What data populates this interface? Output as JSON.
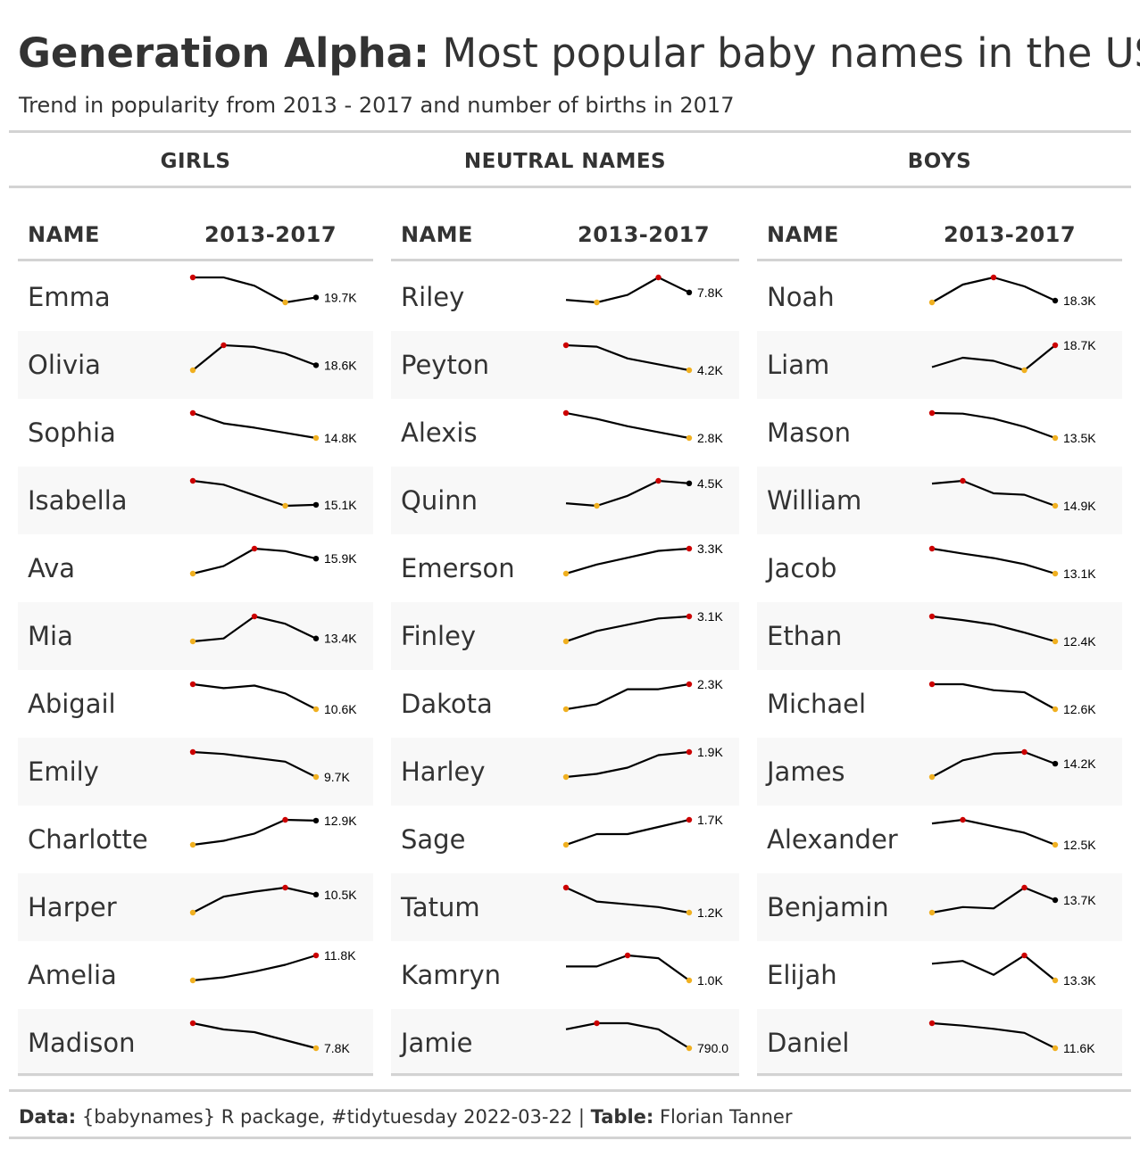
{
  "header": {
    "title_bold": "Generation Alpha:",
    "title_rest": "Most popular baby names in the US",
    "subtitle": "Trend in popularity from 2013 - 2017 and number of births in 2017"
  },
  "colors": {
    "line": "#000000",
    "max_point": "#cc0000",
    "min_point": "#f0b020",
    "row_alt": "#f8f8f8",
    "rule": "#d3d3d3"
  },
  "columns": {
    "name": "NAME",
    "trend": "2013-2017"
  },
  "chart_data": {
    "type": "table",
    "x": [
      2013,
      2014,
      2015,
      2016,
      2017
    ],
    "groups": [
      {
        "label": "GIRLS",
        "rows": [
          {
            "name": "Emma",
            "values": [
              20900,
              20900,
              20400,
              19400,
              19700
            ],
            "label": "19.7K"
          },
          {
            "name": "Olivia",
            "values": [
              18300,
              19800,
              19700,
              19300,
              18600
            ],
            "label": "18.6K"
          },
          {
            "name": "Sophia",
            "values": [
              21100,
              18500,
              17400,
              16100,
              14800
            ],
            "label": "14.8K"
          },
          {
            "name": "Isabella",
            "values": [
              17600,
              17200,
              16100,
              15000,
              15100
            ],
            "label": "15.1K"
          },
          {
            "name": "Ava",
            "values": [
              15300,
              15600,
              16300,
              16200,
              15900
            ],
            "label": "15.9K"
          },
          {
            "name": "Mia",
            "values": [
              13200,
              13400,
              14900,
              14400,
              13400
            ],
            "label": "13.4K"
          },
          {
            "name": "Abigail",
            "values": [
              12500,
              12200,
              12400,
              11800,
              10600
            ],
            "label": "10.6K"
          },
          {
            "name": "Emily",
            "values": [
              12300,
              12100,
              11700,
              11300,
              9700
            ],
            "label": "9.7K"
          },
          {
            "name": "Charlotte",
            "values": [
              9900,
              10400,
              11300,
              13000,
              12900
            ],
            "label": "12.9K"
          },
          {
            "name": "Harper",
            "values": [
              8700,
              10300,
              10800,
              11200,
              10500
            ],
            "label": "10.5K"
          },
          {
            "name": "Amelia",
            "values": [
              7800,
              8300,
              9200,
              10300,
              11800
            ],
            "label": "11.8K"
          },
          {
            "name": "Madison",
            "values": [
              10600,
              9900,
              9600,
              8700,
              7800
            ],
            "label": "7.8K"
          }
        ]
      },
      {
        "label": "NEUTRAL NAMES",
        "rows": [
          {
            "name": "Riley",
            "values": [
              7500,
              7400,
              7700,
              8400,
              7800
            ],
            "label": "7.8K"
          },
          {
            "name": "Peyton",
            "values": [
              5900,
              5800,
              5000,
              4600,
              4200
            ],
            "label": "4.2K"
          },
          {
            "name": "Alexis",
            "values": [
              4500,
              4100,
              3600,
              3200,
              2800
            ],
            "label": "2.8K"
          },
          {
            "name": "Quinn",
            "values": [
              3700,
              3600,
              4000,
              4600,
              4500
            ],
            "label": "4.5K"
          },
          {
            "name": "Emerson",
            "values": [
              2200,
              2600,
              2900,
              3200,
              3300
            ],
            "label": "3.3K"
          },
          {
            "name": "Finley",
            "values": [
              1900,
              2400,
              2700,
              3000,
              3100
            ],
            "label": "3.1K"
          },
          {
            "name": "Dakota",
            "values": [
              1800,
              1900,
              2200,
              2200,
              2300
            ],
            "label": "2.3K"
          },
          {
            "name": "Harley",
            "values": [
              1100,
              1200,
              1400,
              1800,
              1900
            ],
            "label": "1.9K"
          },
          {
            "name": "Sage",
            "values": [
              1000,
              1300,
              1300,
              1500,
              1700
            ],
            "label": "1.7K"
          },
          {
            "name": "Tatum",
            "values": [
              2100,
              1600,
              1500,
              1400,
              1200
            ],
            "label": "1.2K"
          },
          {
            "name": "Kamryn",
            "values": [
              1500,
              1500,
              1900,
              1800,
              1000
            ],
            "label": "1.0K"
          },
          {
            "name": "Jamie",
            "values": [
              1100,
              1200,
              1200,
              1100,
              790
            ],
            "label": "790.0"
          }
        ]
      },
      {
        "label": "BOYS",
        "rows": [
          {
            "name": "Noah",
            "values": [
              18200,
              19200,
              19600,
              19100,
              18300
            ],
            "label": "18.3K"
          },
          {
            "name": "Liam",
            "values": [
              18000,
              18300,
              18200,
              17900,
              18700
            ],
            "label": "18.7K"
          },
          {
            "name": "Mason",
            "values": [
              17500,
              17400,
              16600,
              15300,
              13500
            ],
            "label": "13.5K"
          },
          {
            "name": "William",
            "values": [
              16500,
              16700,
              15800,
              15700,
              14900
            ],
            "label": "14.9K"
          },
          {
            "name": "Jacob",
            "values": [
              18100,
              17100,
              16200,
              15000,
              13100
            ],
            "label": "13.1K"
          },
          {
            "name": "Ethan",
            "values": [
              15800,
              15300,
              14700,
              13600,
              12400
            ],
            "label": "12.4K"
          },
          {
            "name": "Michael",
            "values": [
              15100,
              15100,
              14500,
              14300,
              12600
            ],
            "label": "12.6K"
          },
          {
            "name": "James",
            "values": [
              13400,
              14400,
              14800,
              14900,
              14200
            ],
            "label": "14.2K"
          },
          {
            "name": "Alexander",
            "values": [
              14800,
              15200,
              14500,
              13800,
              12500
            ],
            "label": "12.5K"
          },
          {
            "name": "Benjamin",
            "values": [
              12800,
              13200,
              13100,
              14600,
              13700
            ],
            "label": "13.7K"
          },
          {
            "name": "Elijah",
            "values": [
              13900,
              14000,
              13500,
              14200,
              13300
            ],
            "label": "13.3K"
          },
          {
            "name": "Daniel",
            "values": [
              14700,
              14400,
              14000,
              13500,
              11600
            ],
            "label": "11.6K"
          }
        ]
      }
    ]
  },
  "footer": {
    "data_label": "Data:",
    "data_text": " {babynames} R package, #tidytuesday 2022-03-22 | ",
    "table_label": "Table:",
    "table_text": " Florian Tanner"
  }
}
